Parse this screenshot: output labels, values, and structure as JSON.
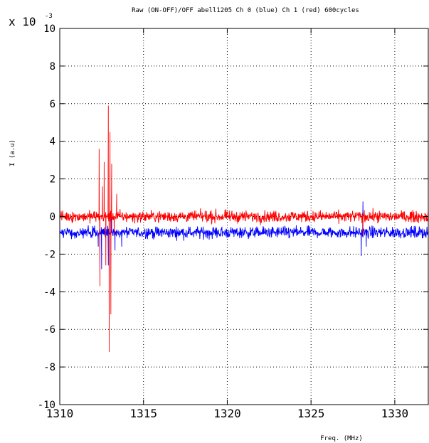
{
  "chart_data": {
    "type": "line",
    "title": "Raw (ON-OFF)/OFF  abell1205 Ch 0 (blue) Ch 1 (red) 600cycles",
    "xlabel": "Freq. (MHz)",
    "ylabel": "I (a.u)",
    "y_scale_label": "x 10",
    "y_scale_exponent": "-3",
    "xlim": [
      1310,
      1332
    ],
    "ylim": [
      -10,
      10
    ],
    "x_ticks": [
      1310,
      1315,
      1320,
      1325,
      1330
    ],
    "x_tick_labels": [
      "1310",
      "1315",
      "1320",
      "1325",
      "1330"
    ],
    "y_ticks": [
      -10,
      -8,
      -6,
      -4,
      -2,
      0,
      2,
      4,
      6,
      8,
      10
    ],
    "y_tick_labels": [
      "-10",
      "-8",
      "-6",
      "-4",
      "-2",
      "0",
      "2",
      "4",
      "6",
      "8",
      "10"
    ],
    "grid": true,
    "series": [
      {
        "color": "#0000ff",
        "baseline": -0.85,
        "noise": 0.3,
        "x_sample_step": 0.02,
        "features": [
          {
            "x": 1312.3,
            "y": -1.6
          },
          {
            "x": 1312.5,
            "y": -2.8
          },
          {
            "x": 1312.9,
            "y": -2.6
          },
          {
            "x": 1313.1,
            "y": 0.2
          },
          {
            "x": 1313.3,
            "y": -1.8
          },
          {
            "x": 1313.7,
            "y": -1.6
          },
          {
            "x": 1328.0,
            "y": -2.1
          },
          {
            "x": 1328.1,
            "y": 0.8
          },
          {
            "x": 1328.3,
            "y": -1.6
          }
        ]
      },
      {
        "color": "#ff0000",
        "baseline": 0.0,
        "noise": 0.3,
        "x_sample_step": 0.02,
        "features": [
          {
            "x": 1312.35,
            "y": 3.6
          },
          {
            "x": 1312.4,
            "y": -3.7
          },
          {
            "x": 1312.55,
            "y": 1.6
          },
          {
            "x": 1312.65,
            "y": 2.9
          },
          {
            "x": 1312.75,
            "y": -2.6
          },
          {
            "x": 1312.9,
            "y": 5.9
          },
          {
            "x": 1312.95,
            "y": -7.2
          },
          {
            "x": 1313.0,
            "y": 4.5
          },
          {
            "x": 1313.05,
            "y": -5.2
          },
          {
            "x": 1313.1,
            "y": 2.8
          },
          {
            "x": 1313.25,
            "y": -1.0
          },
          {
            "x": 1313.4,
            "y": 1.2
          },
          {
            "x": 1318.4,
            "y": 0.4
          },
          {
            "x": 1328.1,
            "y": -1.0
          }
        ]
      }
    ]
  }
}
